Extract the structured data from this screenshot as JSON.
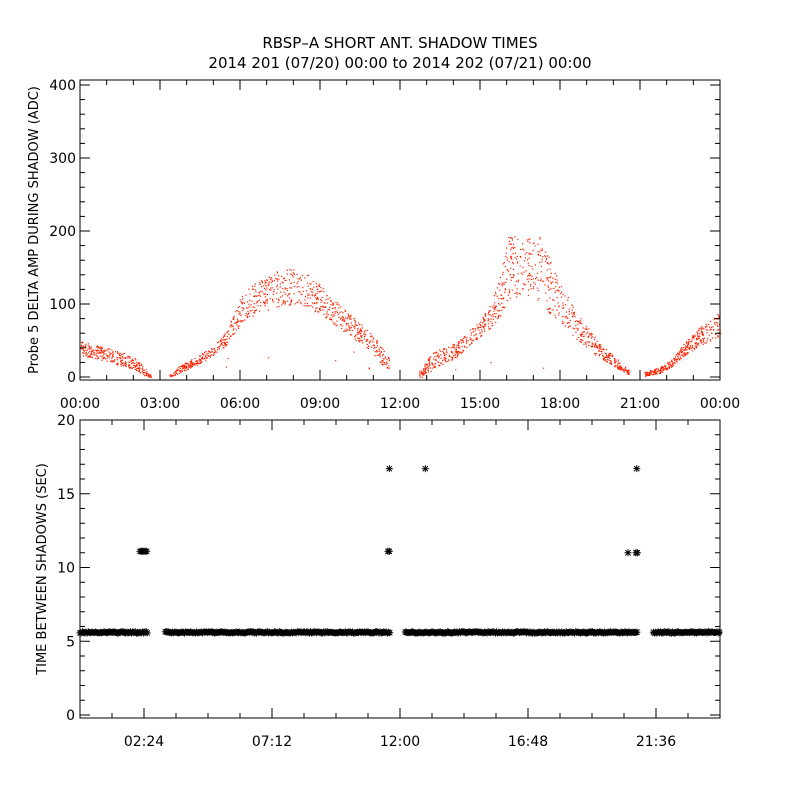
{
  "title_line1": "RBSP–A SHORT ANT. SHADOW TIMES",
  "title_line2": "2014 201 (07/20) 00:00 to 2014 202 (07/21) 00:00",
  "colors": {
    "scatter": "#ff2200",
    "axis": "#000000",
    "stars": "#000000"
  },
  "chart_data": [
    {
      "type": "scatter",
      "ylabel": "Probe 5 DELTA AMP DURING SHADOW (ADC)",
      "xlabel": "",
      "xlim": [
        0,
        24
      ],
      "ylim": [
        0,
        400
      ],
      "x_tick_labels": [
        "00:00",
        "03:00",
        "06:00",
        "09:00",
        "12:00",
        "15:00",
        "18:00",
        "21:00",
        "00:00"
      ],
      "y_tick_labels": [
        "0",
        "100",
        "200",
        "300",
        "400"
      ],
      "envelope_hours": [
        0.0,
        0.5,
        1.0,
        1.5,
        2.0,
        2.3,
        2.6,
        3.4,
        3.7,
        4.2,
        5.0,
        5.5,
        6.0,
        6.5,
        7.0,
        7.5,
        8.0,
        8.5,
        9.0,
        9.5,
        10.0,
        10.5,
        11.0,
        11.5,
        12.0,
        12.8,
        13.2,
        13.8,
        14.2,
        14.6,
        15.0,
        15.4,
        15.8,
        16.0,
        16.3,
        16.6,
        17.0,
        17.3,
        17.6,
        18.0,
        18.5,
        19.0,
        19.5,
        20.0,
        20.5,
        21.0,
        21.4,
        21.8,
        22.2,
        22.6,
        23.0,
        23.5,
        24.0
      ],
      "envelope_low": [
        30,
        26,
        22,
        16,
        10,
        4,
        0,
        0,
        5,
        14,
        28,
        45,
        70,
        85,
        92,
        98,
        100,
        96,
        86,
        72,
        60,
        45,
        30,
        10,
        0,
        0,
        12,
        20,
        30,
        45,
        55,
        68,
        85,
        105,
        110,
        112,
        110,
        100,
        88,
        75,
        55,
        40,
        25,
        15,
        5,
        0,
        3,
        6,
        15,
        28,
        38,
        48,
        55
      ],
      "envelope_high": [
        50,
        45,
        40,
        35,
        28,
        18,
        4,
        4,
        15,
        25,
        42,
        65,
        110,
        128,
        138,
        148,
        150,
        142,
        128,
        108,
        90,
        75,
        58,
        30,
        5,
        10,
        35,
        42,
        50,
        65,
        78,
        100,
        150,
        190,
        200,
        185,
        200,
        190,
        162,
        130,
        95,
        70,
        45,
        30,
        12,
        5,
        10,
        15,
        25,
        45,
        60,
        78,
        90
      ]
    },
    {
      "type": "scatter",
      "ylabel": "TIME BETWEEN SHADOWS (SEC)",
      "xlabel": "",
      "xlim": [
        0,
        24
      ],
      "ylim": [
        0,
        20
      ],
      "x_tick_labels": [
        "02:24",
        "07:12",
        "12:00",
        "16:48",
        "21:36"
      ],
      "x_tick_hours": [
        2.4,
        7.2,
        12.0,
        16.8,
        21.6
      ],
      "y_tick_labels": [
        "0",
        "5",
        "10",
        "15",
        "20"
      ],
      "baseline_value": 5.6,
      "baseline_segments": [
        [
          0.0,
          2.55
        ],
        [
          3.2,
          11.65
        ],
        [
          12.2,
          20.9
        ],
        [
          21.5,
          24.0
        ]
      ],
      "outliers": [
        {
          "x": 2.25,
          "y": 11.1
        },
        {
          "x": 2.3,
          "y": 11.1
        },
        {
          "x": 2.35,
          "y": 11.1
        },
        {
          "x": 2.4,
          "y": 11.1
        },
        {
          "x": 2.45,
          "y": 11.1
        },
        {
          "x": 2.5,
          "y": 11.1
        },
        {
          "x": 11.55,
          "y": 11.1
        },
        {
          "x": 11.6,
          "y": 11.1
        },
        {
          "x": 11.6,
          "y": 16.7
        },
        {
          "x": 12.95,
          "y": 16.7
        },
        {
          "x": 20.55,
          "y": 11.0
        },
        {
          "x": 20.85,
          "y": 11.0
        },
        {
          "x": 20.9,
          "y": 11.0
        },
        {
          "x": 20.88,
          "y": 16.7
        }
      ]
    }
  ]
}
